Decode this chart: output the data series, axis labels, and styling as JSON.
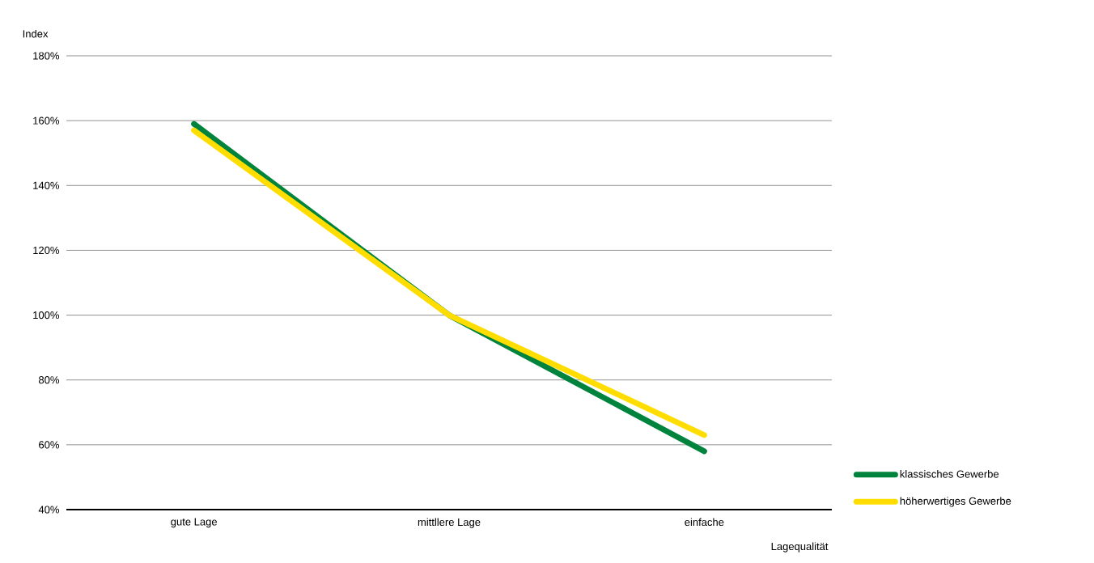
{
  "chart_data": {
    "type": "line",
    "xlabel": "Lagequalität",
    "ylabel": "Index",
    "categories": [
      "gute Lage",
      "mittllere Lage",
      "einfache"
    ],
    "series": [
      {
        "name": "klassisches Gewerbe",
        "color": "#00843d",
        "values": [
          159,
          100,
          58
        ]
      },
      {
        "name": "höherwertiges Gewerbe",
        "color": "#ffdd00",
        "values": [
          157,
          100,
          63
        ]
      }
    ],
    "ylim": [
      40,
      180
    ],
    "yticks": [
      {
        "value": 40,
        "label": "40%"
      },
      {
        "value": 60,
        "label": "60%"
      },
      {
        "value": 80,
        "label": "80%"
      },
      {
        "value": 100,
        "label": "100%"
      },
      {
        "value": 120,
        "label": "120%"
      },
      {
        "value": 140,
        "label": "140%"
      },
      {
        "value": 160,
        "label": "160%"
      },
      {
        "value": 180,
        "label": "180%"
      }
    ],
    "grid": "y",
    "legend": "bottom right",
    "marker": "none",
    "line_style": "solid"
  }
}
